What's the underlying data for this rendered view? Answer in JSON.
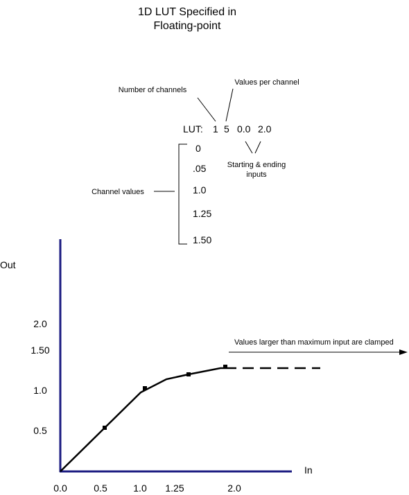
{
  "title": {
    "lines": [
      "1D LUT Specified in",
      "Floating-point"
    ]
  },
  "lut": {
    "label_channels": "Number of channels",
    "label_values": "Values per channel",
    "tokens": [
      "LUT:",
      "1",
      "5",
      "0.0",
      "2.0"
    ],
    "label_inputs": [
      "Starting & ending",
      "inputs"
    ],
    "label_channel_values": "Channel values",
    "channel_values": [
      "0",
      ".05",
      "1.0",
      "1.25",
      "1.50"
    ]
  },
  "graph": {
    "y_label": "Out",
    "x_label": "In",
    "y_ticks": [
      "2.0",
      "1.50",
      "1.0",
      "0.5"
    ],
    "x_ticks": [
      "0.0",
      "0.5",
      "1.0",
      "1.25",
      "2.0"
    ],
    "annotation": "Values larger than maximum input are clamped"
  }
}
